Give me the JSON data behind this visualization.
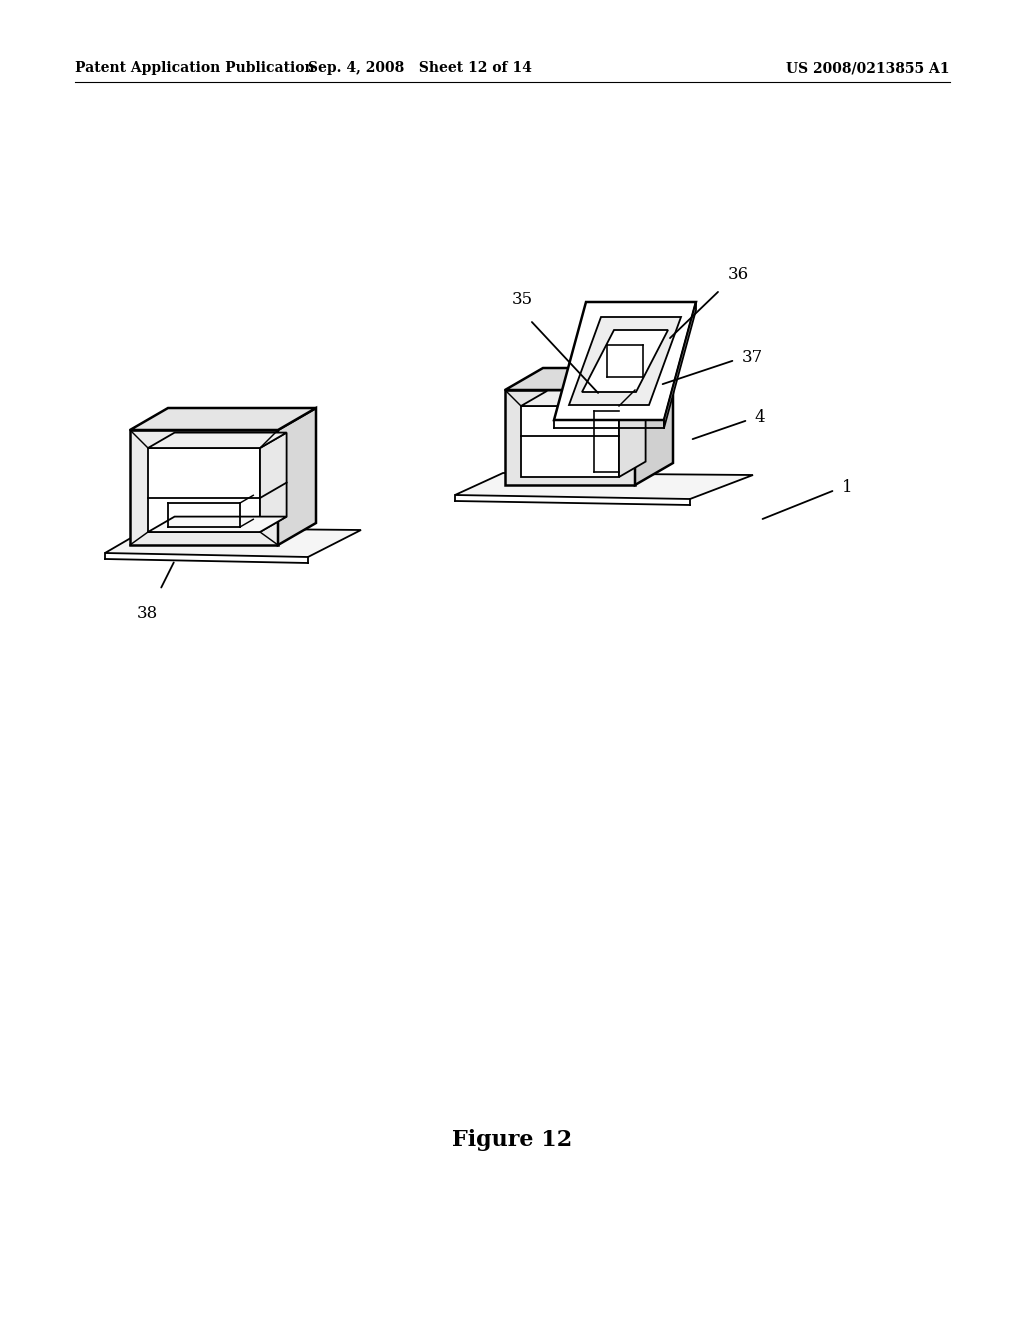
{
  "bg_color": "#ffffff",
  "header_left": "Patent Application Publication",
  "header_mid": "Sep. 4, 2008   Sheet 12 of 14",
  "header_right": "US 2008/0213855 A1",
  "figure_label": "Figure 12",
  "header_fontsize": 10,
  "figure_label_fontsize": 16
}
